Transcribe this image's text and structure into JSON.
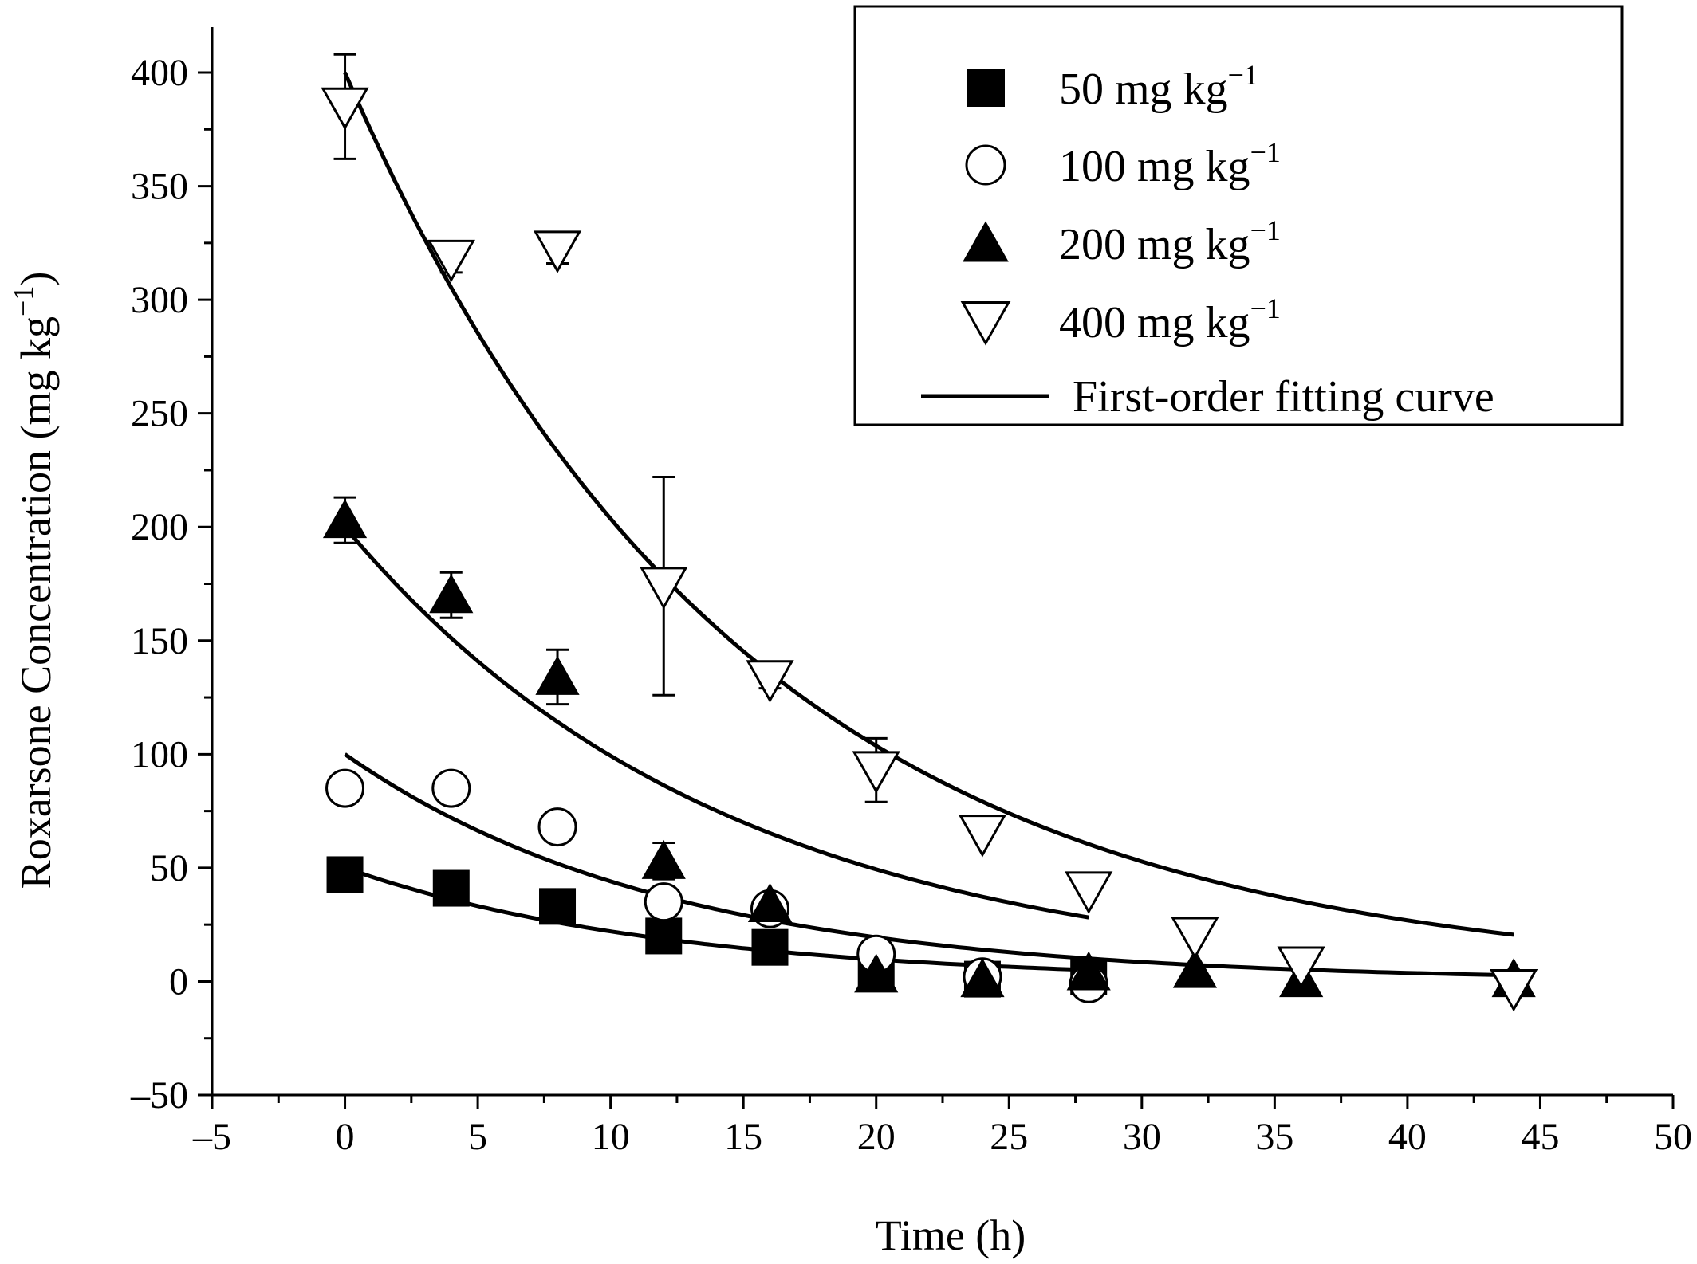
{
  "chart_data": {
    "type": "scatter",
    "xlabel": "Time (h)",
    "ylabel_main": "Roxarsone Concentration (mg kg",
    "ylabel_sup": "−1",
    "ylabel_end": ")",
    "xlim": [
      -5,
      50
    ],
    "ylim": [
      -50,
      420
    ],
    "xticks": [
      -5,
      0,
      5,
      10,
      15,
      20,
      25,
      30,
      35,
      40,
      45,
      50
    ],
    "xtick_labels": [
      "–5",
      "0",
      "5",
      "10",
      "15",
      "20",
      "25",
      "30",
      "35",
      "40",
      "45",
      "50"
    ],
    "yticks": [
      -50,
      0,
      50,
      100,
      150,
      200,
      250,
      300,
      350,
      400
    ],
    "ytick_labels": [
      "–50",
      "0",
      "50",
      "100",
      "150",
      "200",
      "250",
      "300",
      "350",
      "400"
    ],
    "legend_position": "top-right",
    "series": [
      {
        "name_main": "50 mg kg",
        "name_sup": "−1",
        "marker": "filled-square",
        "points": [
          {
            "x": 0,
            "y": 47
          },
          {
            "x": 4,
            "y": 41
          },
          {
            "x": 8,
            "y": 33
          },
          {
            "x": 12,
            "y": 20
          },
          {
            "x": 16,
            "y": 15
          },
          {
            "x": 20,
            "y": 4
          },
          {
            "x": 24,
            "y": 1
          },
          {
            "x": 28,
            "y": 2
          }
        ],
        "fit": {
          "c0": 50,
          "k": 0.082,
          "xmax": 28
        }
      },
      {
        "name_main": "100 mg kg",
        "name_sup": "−1",
        "marker": "open-circle",
        "points": [
          {
            "x": 0,
            "y": 85,
            "err": 5
          },
          {
            "x": 4,
            "y": 85,
            "err": 4
          },
          {
            "x": 8,
            "y": 68,
            "err": 4
          },
          {
            "x": 12,
            "y": 35
          },
          {
            "x": 16,
            "y": 32
          },
          {
            "x": 20,
            "y": 12
          },
          {
            "x": 24,
            "y": 2
          },
          {
            "x": 28,
            "y": -1
          }
        ],
        "fit": {
          "c0": 100,
          "k": 0.082,
          "xmax": 44
        }
      },
      {
        "name_main": "200 mg kg",
        "name_sup": "−1",
        "marker": "filled-triangle-up",
        "points": [
          {
            "x": 0,
            "y": 203,
            "err": 10
          },
          {
            "x": 4,
            "y": 170,
            "err": 10
          },
          {
            "x": 8,
            "y": 134,
            "err": 12
          },
          {
            "x": 12,
            "y": 53,
            "err": 8
          },
          {
            "x": 16,
            "y": 34
          },
          {
            "x": 20,
            "y": 3
          },
          {
            "x": 24,
            "y": 1
          },
          {
            "x": 28,
            "y": 4
          },
          {
            "x": 32,
            "y": 5
          },
          {
            "x": 36,
            "y": 1
          },
          {
            "x": 44,
            "y": 1
          }
        ],
        "fit": {
          "c0": 200,
          "k": 0.07,
          "xmax": 28
        }
      },
      {
        "name_main": "400 mg kg",
        "name_sup": "−1",
        "marker": "open-triangle-down",
        "points": [
          {
            "x": 0,
            "y": 385,
            "err": 23
          },
          {
            "x": 4,
            "y": 318,
            "err": 6
          },
          {
            "x": 8,
            "y": 322,
            "err": 6
          },
          {
            "x": 12,
            "y": 174,
            "err": 48
          },
          {
            "x": 16,
            "y": 133,
            "err": 4
          },
          {
            "x": 20,
            "y": 93,
            "err": 14
          },
          {
            "x": 24,
            "y": 65
          },
          {
            "x": 28,
            "y": 40
          },
          {
            "x": 32,
            "y": 20
          },
          {
            "x": 36,
            "y": 7
          },
          {
            "x": 44,
            "y": -3
          }
        ],
        "fit": {
          "c0": 400,
          "k": 0.0675,
          "xmax": 44
        }
      }
    ],
    "fit_legend_label": "First-order fitting curve"
  }
}
